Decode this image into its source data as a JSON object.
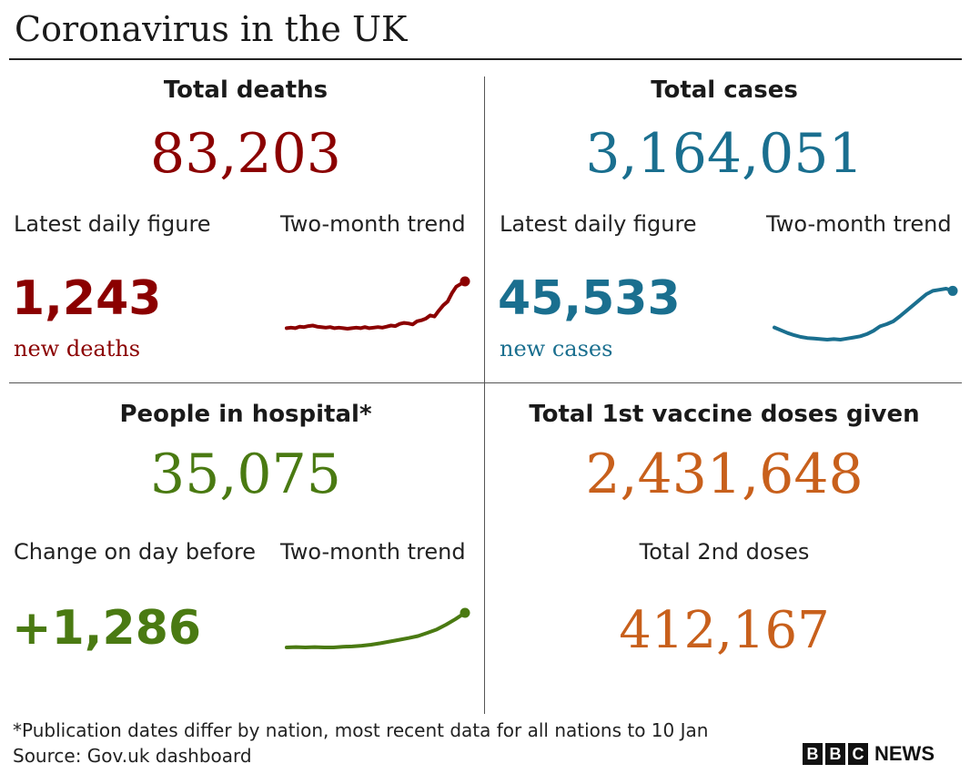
{
  "title": "Coronavirus in the UK",
  "colors": {
    "deaths": "#8b0000",
    "cases": "#1a6f8f",
    "hospital": "#4a7a12",
    "vaccine": "#c8601c"
  },
  "deaths": {
    "heading": "Total deaths",
    "total": "83,203",
    "label_left": "Latest daily figure",
    "label_right": "Two-month trend",
    "value": "1,243",
    "unit": "new deaths"
  },
  "cases": {
    "heading": "Total cases",
    "total": "3,164,051",
    "label_left": "Latest daily figure",
    "label_right": "Two-month trend",
    "value": "45,533",
    "unit": "new cases"
  },
  "hospital": {
    "heading": "People in hospital*",
    "total": "35,075",
    "label_left": "Change on day before",
    "label_right": "Two-month trend",
    "value": "+1,286"
  },
  "vaccine": {
    "heading": "Total 1st vaccine doses given",
    "total": "2,431,648",
    "second_label": "Total 2nd doses",
    "second_value": "412,167"
  },
  "footnote": "*Publication dates differ by nation, most recent data for all nations to 10 Jan",
  "source": "Source: Gov.uk dashboard",
  "logo": {
    "letters": [
      "B",
      "B",
      "C"
    ],
    "word": "NEWS"
  },
  "chart_data": [
    {
      "type": "line",
      "series": [
        {
          "values": [
            0.12,
            0.13,
            0.12,
            0.15,
            0.14,
            0.16,
            0.17,
            0.15,
            0.14,
            0.13,
            0.14,
            0.12,
            0.13,
            0.12,
            0.11,
            0.12,
            0.13,
            0.12,
            0.14,
            0.12,
            0.13,
            0.14,
            0.13,
            0.15,
            0.17,
            0.16,
            0.2,
            0.22,
            0.21,
            0.19,
            0.25,
            0.27,
            0.3,
            0.36,
            0.34,
            0.45,
            0.55,
            0.62,
            0.78,
            0.9,
            0.95,
            1.0
          ]
        }
      ]
    },
    {
      "type": "line",
      "series": [
        {
          "values": [
            0.22,
            0.17,
            0.12,
            0.08,
            0.05,
            0.03,
            0.02,
            0.01,
            0.0,
            0.01,
            0.0,
            0.02,
            0.04,
            0.06,
            0.1,
            0.16,
            0.24,
            0.28,
            0.33,
            0.42,
            0.52,
            0.62,
            0.72,
            0.82,
            0.88,
            0.9,
            0.92,
            0.88
          ]
        }
      ]
    },
    {
      "type": "line",
      "series": [
        {
          "values": [
            0.0,
            0.01,
            0.0,
            0.01,
            0.0,
            0.0,
            0.02,
            0.03,
            0.05,
            0.08,
            0.12,
            0.17,
            0.22,
            0.27,
            0.33,
            0.42,
            0.52,
            0.66,
            0.82,
            1.0
          ]
        }
      ]
    }
  ]
}
